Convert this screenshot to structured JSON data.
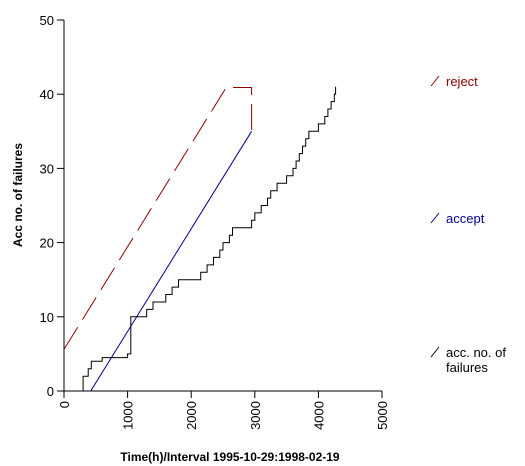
{
  "chart_data": {
    "type": "line",
    "title": "",
    "xlabel": "Time(h)/Interval 1995-10-29:1998-02-19",
    "ylabel": "Acc no. of failures",
    "xlim": [
      0,
      5000
    ],
    "ylim": [
      0,
      50
    ],
    "x_ticks": [
      0,
      1000,
      2000,
      3000,
      4000,
      5000
    ],
    "y_ticks": [
      0,
      10,
      20,
      30,
      40,
      50
    ],
    "x_tick_labels": [
      "0",
      "1000",
      "2000",
      "3000",
      "4000",
      "5000"
    ],
    "y_tick_labels": [
      "0",
      "10",
      "20",
      "30",
      "40",
      "50"
    ],
    "grid": false,
    "legend_position": "right",
    "series": [
      {
        "name": "reject",
        "color": "#8b0000",
        "dash": "long-dash",
        "points": [
          [
            0,
            5.6
          ],
          [
            2550,
            40.9
          ],
          [
            2950,
            40.9
          ],
          [
            2950,
            35
          ]
        ]
      },
      {
        "name": "accept",
        "color": "#00008b",
        "dash": "solid",
        "points": [
          [
            420,
            0
          ],
          [
            2950,
            35
          ]
        ]
      },
      {
        "name": "acc. no. of failures",
        "color": "#000000",
        "dash": "solid",
        "step": true,
        "points": [
          [
            0,
            0
          ],
          [
            300,
            2
          ],
          [
            380,
            3
          ],
          [
            430,
            4
          ],
          [
            600,
            4.5
          ],
          [
            1000,
            5
          ],
          [
            1050,
            10
          ],
          [
            1300,
            11
          ],
          [
            1400,
            12
          ],
          [
            1600,
            13
          ],
          [
            1700,
            14
          ],
          [
            1800,
            15
          ],
          [
            2150,
            16
          ],
          [
            2250,
            17
          ],
          [
            2350,
            18
          ],
          [
            2450,
            19
          ],
          [
            2500,
            20
          ],
          [
            2600,
            21
          ],
          [
            2650,
            22
          ],
          [
            2950,
            23
          ],
          [
            3000,
            24
          ],
          [
            3100,
            25
          ],
          [
            3200,
            26
          ],
          [
            3250,
            27
          ],
          [
            3350,
            28
          ],
          [
            3500,
            29
          ],
          [
            3600,
            30
          ],
          [
            3650,
            31
          ],
          [
            3700,
            32
          ],
          [
            3750,
            33
          ],
          [
            3800,
            34
          ],
          [
            3850,
            35
          ],
          [
            4000,
            36
          ],
          [
            4100,
            37
          ],
          [
            4150,
            38
          ],
          [
            4200,
            39
          ],
          [
            4250,
            40
          ],
          [
            4270,
            41
          ]
        ]
      }
    ]
  }
}
